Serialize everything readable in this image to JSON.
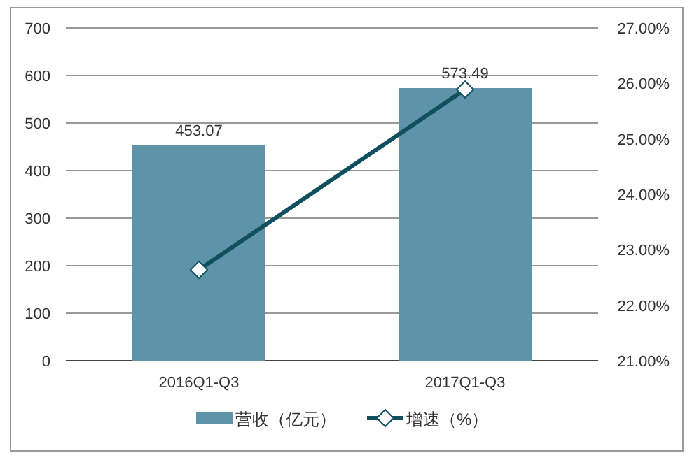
{
  "chart_data": {
    "type": "bar",
    "categories": [
      "2016Q1-Q3",
      "2017Q1-Q3"
    ],
    "series": [
      {
        "name": "营收（亿元）",
        "color": "#5f93a8",
        "values": [
          453.07,
          573.49
        ],
        "value_labels": [
          "453.07",
          "573.49"
        ]
      },
      {
        "name": "增速（%）",
        "type": "line",
        "axis": "y2",
        "color": "#0f4f5e",
        "values": [
          22.64,
          25.89
        ]
      }
    ],
    "ylim": [
      0,
      700
    ],
    "yticks": [
      0,
      100,
      200,
      300,
      400,
      500,
      600,
      700
    ],
    "y2lim": [
      21,
      27
    ],
    "y2ticks": [
      {
        "value": 21,
        "label": "21.00%"
      },
      {
        "value": 22,
        "label": "22.00%"
      },
      {
        "value": 23,
        "label": "23.00%"
      },
      {
        "value": 24,
        "label": "24.00%"
      },
      {
        "value": 25,
        "label": "25.00%"
      },
      {
        "value": 26,
        "label": "26.00%"
      },
      {
        "value": 27,
        "label": "27.00%"
      }
    ],
    "grid": "y",
    "legend": "bottom",
    "marker": "diamond"
  }
}
